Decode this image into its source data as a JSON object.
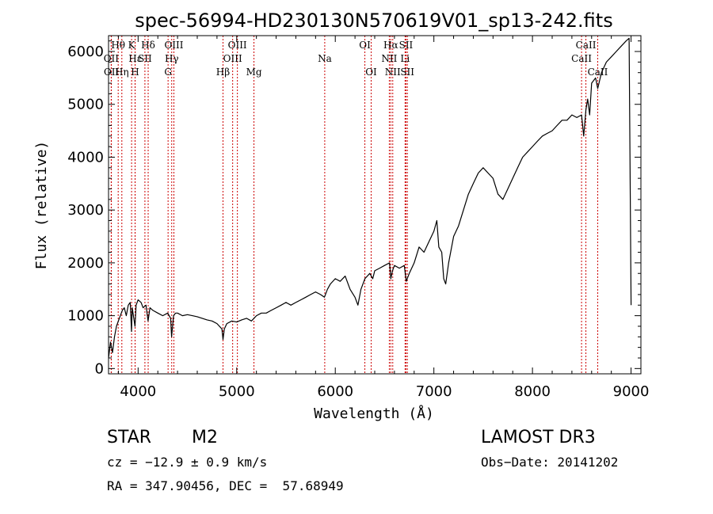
{
  "chart_data": {
    "type": "line",
    "title": "spec-56994-HD230130N570619V01_sp13-242.fits",
    "xlabel": "Wavelength (Å)",
    "ylabel": "Flux (relative)",
    "xlim": [
      3700,
      9100
    ],
    "ylim": [
      -100,
      6300
    ],
    "x_ticks": [
      4000,
      5000,
      6000,
      7000,
      8000,
      9000
    ],
    "y_ticks": [
      0,
      1000,
      2000,
      3000,
      4000,
      5000,
      6000
    ],
    "series": [
      {
        "name": "flux",
        "x": [
          3700,
          3720,
          3740,
          3760,
          3780,
          3800,
          3820,
          3840,
          3860,
          3880,
          3900,
          3920,
          3933,
          3940,
          3968,
          3980,
          4000,
          4030,
          4050,
          4080,
          4101,
          4120,
          4150,
          4200,
          4250,
          4300,
          4330,
          4340,
          4360,
          4380,
          4400,
          4450,
          4500,
          4550,
          4600,
          4650,
          4700,
          4750,
          4800,
          4850,
          4861,
          4875,
          4900,
          4950,
          5000,
          5050,
          5100,
          5150,
          5200,
          5250,
          5300,
          5350,
          5400,
          5450,
          5500,
          5550,
          5600,
          5650,
          5700,
          5750,
          5800,
          5850,
          5890,
          5920,
          5950,
          6000,
          6050,
          6100,
          6150,
          6200,
          6230,
          6260,
          6300,
          6350,
          6380,
          6400,
          6450,
          6500,
          6550,
          6563,
          6580,
          6600,
          6650,
          6700,
          6720,
          6750,
          6800,
          6850,
          6900,
          6950,
          7000,
          7030,
          7050,
          7080,
          7100,
          7120,
          7150,
          7200,
          7250,
          7300,
          7350,
          7400,
          7450,
          7500,
          7550,
          7600,
          7650,
          7700,
          7750,
          7800,
          7850,
          7900,
          7950,
          8000,
          8050,
          8100,
          8150,
          8200,
          8250,
          8300,
          8350,
          8400,
          8450,
          8498,
          8520,
          8542,
          8560,
          8580,
          8600,
          8640,
          8662,
          8700,
          8750,
          8800,
          8850,
          8900,
          8950,
          8980,
          9000
        ],
        "y": [
          200,
          500,
          300,
          600,
          800,
          900,
          1000,
          1100,
          1150,
          1000,
          1200,
          1250,
          700,
          1150,
          800,
          1200,
          1300,
          1250,
          1150,
          1200,
          900,
          1150,
          1100,
          1050,
          1000,
          1050,
          950,
          600,
          1000,
          1050,
          1050,
          1000,
          1020,
          1000,
          980,
          950,
          920,
          900,
          850,
          750,
          550,
          750,
          850,
          900,
          880,
          920,
          950,
          900,
          1000,
          1050,
          1050,
          1100,
          1150,
          1200,
          1250,
          1200,
          1250,
          1300,
          1350,
          1400,
          1450,
          1400,
          1350,
          1500,
          1600,
          1700,
          1650,
          1750,
          1500,
          1350,
          1200,
          1500,
          1700,
          1800,
          1700,
          1850,
          1900,
          1950,
          2000,
          1700,
          1850,
          1950,
          1900,
          1950,
          1650,
          1800,
          2000,
          2300,
          2200,
          2400,
          2600,
          2800,
          2300,
          2200,
          1700,
          1600,
          2000,
          2500,
          2700,
          3000,
          3300,
          3500,
          3700,
          3800,
          3700,
          3600,
          3300,
          3200,
          3400,
          3600,
          3800,
          4000,
          4100,
          4200,
          4300,
          4400,
          4450,
          4500,
          4600,
          4700,
          4700,
          4800,
          4750,
          4800,
          4400,
          4900,
          5100,
          4800,
          5400,
          5500,
          5300,
          5600,
          5800,
          5900,
          6000,
          6100,
          6200,
          6250,
          1200
        ]
      }
    ],
    "spectral_lines": [
      {
        "label": "Hθ",
        "wl": 3798,
        "row": 0
      },
      {
        "label": "OII",
        "wl": 3727,
        "row": 1
      },
      {
        "label": "OII",
        "wl": 3729,
        "row": 2
      },
      {
        "label": "Hη",
        "wl": 3835,
        "row": 2
      },
      {
        "label": "Hε",
        "wl": 3970,
        "row": 1
      },
      {
        "label": "K",
        "wl": 3934,
        "row": 0
      },
      {
        "label": "H",
        "wl": 3969,
        "row": 2
      },
      {
        "label": "SII",
        "wl": 4069,
        "row": 1
      },
      {
        "label": "Hδ",
        "wl": 4102,
        "row": 0
      },
      {
        "label": "OIII",
        "wl": 4363,
        "row": 0
      },
      {
        "label": "Hγ",
        "wl": 4341,
        "row": 1
      },
      {
        "label": "G",
        "wl": 4304,
        "row": 2
      },
      {
        "label": "Hβ",
        "wl": 4861,
        "row": 2
      },
      {
        "label": "OIII",
        "wl": 4959,
        "row": 1
      },
      {
        "label": "OIII",
        "wl": 5007,
        "row": 0
      },
      {
        "label": "Mg",
        "wl": 5175,
        "row": 2
      },
      {
        "label": "Na",
        "wl": 5893,
        "row": 1
      },
      {
        "label": "OI",
        "wl": 6300,
        "row": 0
      },
      {
        "label": "OI",
        "wl": 6364,
        "row": 2
      },
      {
        "label": "Hα",
        "wl": 6563,
        "row": 0
      },
      {
        "label": "NII",
        "wl": 6548,
        "row": 1
      },
      {
        "label": "NII",
        "wl": 6583,
        "row": 2
      },
      {
        "label": "SII",
        "wl": 6717,
        "row": 0
      },
      {
        "label": "Li",
        "wl": 6708,
        "row": 1
      },
      {
        "label": "SII",
        "wl": 6731,
        "row": 2
      },
      {
        "label": "CaII",
        "wl": 8542,
        "row": 0
      },
      {
        "label": "CaII",
        "wl": 8498,
        "row": 1
      },
      {
        "label": "CaII",
        "wl": 8662,
        "row": 2
      }
    ],
    "line_color": "#000000",
    "marker_color": "#cc0000"
  },
  "footer": {
    "object_class": "STAR",
    "subclass": "M2",
    "survey": "LAMOST DR3",
    "cz": "cz = −12.9 ± 0.9 km/s",
    "obs_date": "Obs−Date: 20141202",
    "coords": "RA = 347.90456, DEC =  57.68949"
  }
}
